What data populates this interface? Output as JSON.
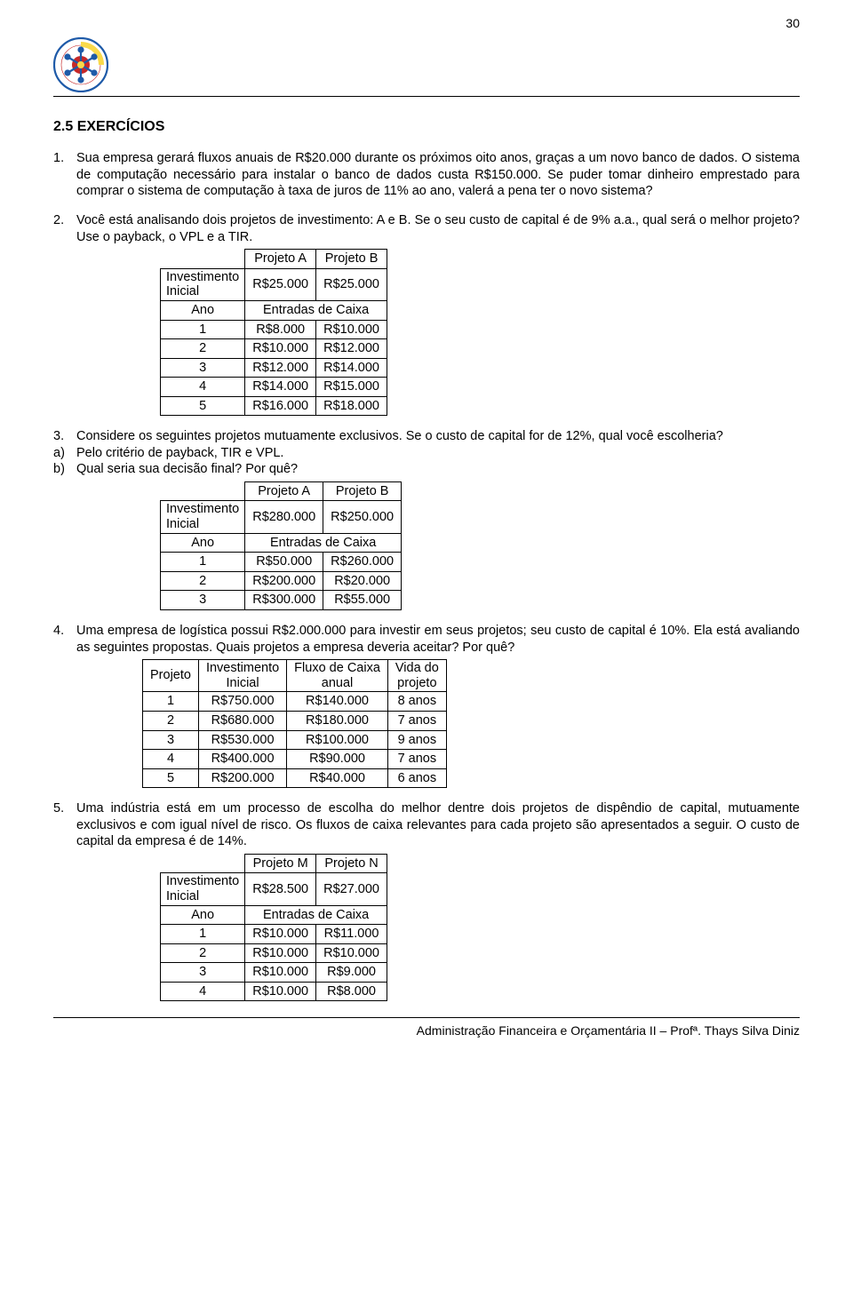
{
  "page_number": "30",
  "section_title_num": "2.5 ",
  "section_title_word": "EXERCÍCIOS",
  "footer": "Administração Financeira e Orçamentária II – Profª. Thays Silva Diniz",
  "ex1": {
    "marker": "1.",
    "text": "Sua empresa gerará fluxos anuais de R$20.000 durante os próximos oito anos, graças a um novo banco de dados. O sistema de computação necessário para instalar o banco de dados custa R$150.000. Se puder tomar dinheiro emprestado para comprar o sistema de computação à taxa de juros de 11% ao ano, valerá a pena ter o novo sistema?"
  },
  "ex2": {
    "marker": "2.",
    "text": "Você está analisando dois projetos de investimento: A e B. Se o seu custo de capital é de 9% a.a., qual será o melhor projeto? Use o payback, o VPL e a TIR.",
    "table": {
      "col_a": "Projeto A",
      "col_b": "Projeto B",
      "row_inv_label": "Investimento Inicial",
      "row_inv_a": "R$25.000",
      "row_inv_b": "R$25.000",
      "row_ano_label": "Ano",
      "row_ano_span": "Entradas de Caixa",
      "rows": [
        {
          "n": "1",
          "a": "R$8.000",
          "b": "R$10.000"
        },
        {
          "n": "2",
          "a": "R$10.000",
          "b": "R$12.000"
        },
        {
          "n": "3",
          "a": "R$12.000",
          "b": "R$14.000"
        },
        {
          "n": "4",
          "a": "R$14.000",
          "b": "R$15.000"
        },
        {
          "n": "5",
          "a": "R$16.000",
          "b": "R$18.000"
        }
      ]
    }
  },
  "ex3": {
    "marker": "3.",
    "text": "Considere os seguintes projetos mutuamente exclusivos. Se o custo de capital for de 12%, qual você escolheria?",
    "sub_a_marker": "a)",
    "sub_a_text": "Pelo critério de payback, TIR e VPL.",
    "sub_b_marker": "b)",
    "sub_b_text": "Qual seria sua decisão final? Por quê?",
    "table": {
      "col_a": "Projeto A",
      "col_b": "Projeto B",
      "row_inv_label": "Investimento Inicial",
      "row_inv_a": "R$280.000",
      "row_inv_b": "R$250.000",
      "row_ano_label": "Ano",
      "row_ano_span": "Entradas de Caixa",
      "rows": [
        {
          "n": "1",
          "a": "R$50.000",
          "b": "R$260.000"
        },
        {
          "n": "2",
          "a": "R$200.000",
          "b": "R$20.000"
        },
        {
          "n": "3",
          "a": "R$300.000",
          "b": "R$55.000"
        }
      ]
    }
  },
  "ex4": {
    "marker": "4.",
    "text": "Uma empresa de logística possui R$2.000.000 para investir em seus projetos; seu custo de capital é 10%. Ela está avaliando as seguintes propostas. Quais projetos a empresa deveria aceitar? Por quê?",
    "table": {
      "h1": "Projeto",
      "h2": "Investimento Inicial",
      "h3": "Fluxo de Caixa anual",
      "h4": "Vida do projeto",
      "rows": [
        {
          "p": "1",
          "i": "R$750.000",
          "f": "R$140.000",
          "v": "8 anos"
        },
        {
          "p": "2",
          "i": "R$680.000",
          "f": "R$180.000",
          "v": "7 anos"
        },
        {
          "p": "3",
          "i": "R$530.000",
          "f": "R$100.000",
          "v": "9 anos"
        },
        {
          "p": "4",
          "i": "R$400.000",
          "f": "R$90.000",
          "v": "7 anos"
        },
        {
          "p": "5",
          "i": "R$200.000",
          "f": "R$40.000",
          "v": "6 anos"
        }
      ]
    }
  },
  "ex5": {
    "marker": "5.",
    "text": "Uma indústria está em um processo de escolha do melhor dentre dois projetos de dispêndio de capital, mutuamente exclusivos e com igual nível de risco. Os fluxos de caixa relevantes para cada projeto são apresentados a seguir. O custo de capital da empresa é de 14%.",
    "table": {
      "col_a": "Projeto M",
      "col_b": "Projeto N",
      "row_inv_label": "Investimento Inicial",
      "row_inv_a": "R$28.500",
      "row_inv_b": "R$27.000",
      "row_ano_label": "Ano",
      "row_ano_span": "Entradas de Caixa",
      "rows": [
        {
          "n": "1",
          "a": "R$10.000",
          "b": "R$11.000"
        },
        {
          "n": "2",
          "a": "R$10.000",
          "b": "R$10.000"
        },
        {
          "n": "3",
          "a": "R$10.000",
          "b": "R$9.000"
        },
        {
          "n": "4",
          "a": "R$10.000",
          "b": "R$8.000"
        }
      ]
    }
  },
  "colors": {
    "text": "#000000",
    "border": "#000000",
    "background": "#ffffff",
    "logo_blue": "#1e5aa8",
    "logo_red": "#c62828",
    "logo_yellow": "#f9d94a",
    "logo_green": "#2e7d32"
  },
  "fonts": {
    "family": "Arial",
    "body_pt": 11,
    "title_pt": 12
  }
}
